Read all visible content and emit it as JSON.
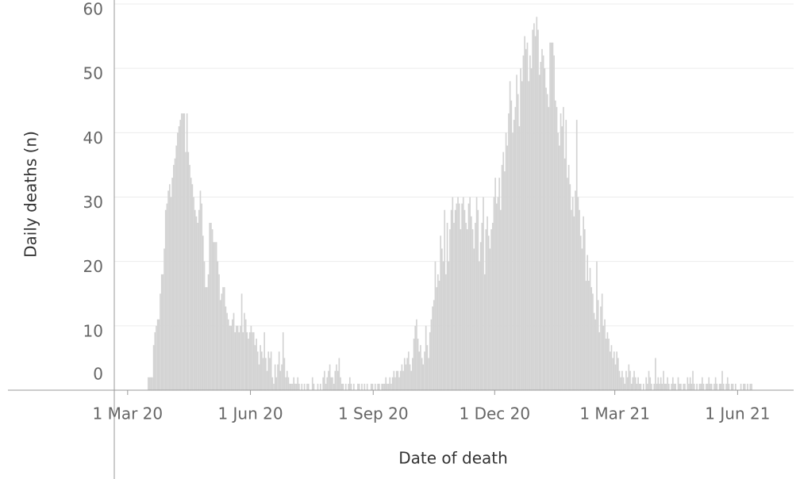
{
  "chart_data": {
    "type": "bar",
    "x_label": "Date of death",
    "y_label": "Daily deaths (n)",
    "color": "#d3d3d3",
    "grid": true,
    "xlim": [
      "2020-02-20",
      "2021-07-13"
    ],
    "xticks": [
      {
        "value": "2020-03-01",
        "label": "1 Mar 20"
      },
      {
        "value": "2020-06-01",
        "label": "1 Jun 20"
      },
      {
        "value": "2020-09-01",
        "label": "1 Sep 20"
      },
      {
        "value": "2020-12-01",
        "label": "1 Dec 20"
      },
      {
        "value": "2021-03-01",
        "label": "1 Mar 21"
      },
      {
        "value": "2021-06-01",
        "label": "1 Jun 21"
      }
    ],
    "ylim": [
      0,
      60
    ],
    "yticks": [
      0,
      10,
      20,
      30,
      40,
      50,
      60
    ],
    "x": [
      "2020-03-16",
      "2020-03-17",
      "2020-03-18",
      "2020-03-19",
      "2020-03-20",
      "2020-03-21",
      "2020-03-22",
      "2020-03-23",
      "2020-03-24",
      "2020-03-25",
      "2020-03-26",
      "2020-03-27",
      "2020-03-28",
      "2020-03-29",
      "2020-03-30",
      "2020-03-31",
      "2020-04-01",
      "2020-04-02",
      "2020-04-03",
      "2020-04-04",
      "2020-04-05",
      "2020-04-06",
      "2020-04-07",
      "2020-04-08",
      "2020-04-09",
      "2020-04-10",
      "2020-04-11",
      "2020-04-12",
      "2020-04-13",
      "2020-04-14",
      "2020-04-15",
      "2020-04-16",
      "2020-04-17",
      "2020-04-18",
      "2020-04-19",
      "2020-04-20",
      "2020-04-21",
      "2020-04-22",
      "2020-04-23",
      "2020-04-24",
      "2020-04-25",
      "2020-04-26",
      "2020-04-27",
      "2020-04-28",
      "2020-04-29",
      "2020-04-30",
      "2020-05-01",
      "2020-05-02",
      "2020-05-03",
      "2020-05-04",
      "2020-05-05",
      "2020-05-06",
      "2020-05-07",
      "2020-05-08",
      "2020-05-09",
      "2020-05-10",
      "2020-05-11",
      "2020-05-12",
      "2020-05-13",
      "2020-05-14",
      "2020-05-15",
      "2020-05-16",
      "2020-05-17",
      "2020-05-18",
      "2020-05-19",
      "2020-05-20",
      "2020-05-21",
      "2020-05-22",
      "2020-05-23",
      "2020-05-24",
      "2020-05-25",
      "2020-05-26",
      "2020-05-27",
      "2020-05-28",
      "2020-05-29",
      "2020-05-30",
      "2020-05-31",
      "2020-06-01",
      "2020-06-02",
      "2020-06-03",
      "2020-06-04",
      "2020-06-05",
      "2020-06-06",
      "2020-06-07",
      "2020-06-08",
      "2020-06-09",
      "2020-06-10",
      "2020-06-11",
      "2020-06-12",
      "2020-06-13",
      "2020-06-14",
      "2020-06-15",
      "2020-06-16",
      "2020-06-17",
      "2020-06-18",
      "2020-06-19",
      "2020-06-20",
      "2020-06-21",
      "2020-06-22",
      "2020-06-23",
      "2020-06-24",
      "2020-06-25",
      "2020-06-26",
      "2020-06-27",
      "2020-06-28",
      "2020-06-29",
      "2020-06-30",
      "2020-07-01",
      "2020-07-02",
      "2020-07-03",
      "2020-07-04",
      "2020-07-05",
      "2020-07-06",
      "2020-07-07",
      "2020-07-08",
      "2020-07-09",
      "2020-07-10",
      "2020-07-11",
      "2020-07-12",
      "2020-07-13",
      "2020-07-14",
      "2020-07-15",
      "2020-07-16",
      "2020-07-17",
      "2020-07-18",
      "2020-07-19",
      "2020-07-20",
      "2020-07-21",
      "2020-07-22",
      "2020-07-23",
      "2020-07-24",
      "2020-07-25",
      "2020-07-26",
      "2020-07-27",
      "2020-07-28",
      "2020-07-29",
      "2020-07-30",
      "2020-07-31",
      "2020-08-01",
      "2020-08-02",
      "2020-08-03",
      "2020-08-04",
      "2020-08-05",
      "2020-08-06",
      "2020-08-07",
      "2020-08-08",
      "2020-08-09",
      "2020-08-10",
      "2020-08-11",
      "2020-08-12",
      "2020-08-13",
      "2020-08-14",
      "2020-08-15",
      "2020-08-16",
      "2020-08-17",
      "2020-08-18",
      "2020-08-19",
      "2020-08-20",
      "2020-08-21",
      "2020-08-22",
      "2020-08-23",
      "2020-08-24",
      "2020-08-25",
      "2020-08-26",
      "2020-08-27",
      "2020-08-28",
      "2020-08-29",
      "2020-08-30",
      "2020-08-31",
      "2020-09-01",
      "2020-09-02",
      "2020-09-03",
      "2020-09-04",
      "2020-09-05",
      "2020-09-06",
      "2020-09-07",
      "2020-09-08",
      "2020-09-09",
      "2020-09-10",
      "2020-09-11",
      "2020-09-12",
      "2020-09-13",
      "2020-09-14",
      "2020-09-15",
      "2020-09-16",
      "2020-09-17",
      "2020-09-18",
      "2020-09-19",
      "2020-09-20",
      "2020-09-21",
      "2020-09-22",
      "2020-09-23",
      "2020-09-24",
      "2020-09-25",
      "2020-09-26",
      "2020-09-27",
      "2020-09-28",
      "2020-09-29",
      "2020-09-30",
      "2020-10-01",
      "2020-10-02",
      "2020-10-03",
      "2020-10-04",
      "2020-10-05",
      "2020-10-06",
      "2020-10-07",
      "2020-10-08",
      "2020-10-09",
      "2020-10-10",
      "2020-10-11",
      "2020-10-12",
      "2020-10-13",
      "2020-10-14",
      "2020-10-15",
      "2020-10-16",
      "2020-10-17",
      "2020-10-18",
      "2020-10-19",
      "2020-10-20",
      "2020-10-21",
      "2020-10-22",
      "2020-10-23",
      "2020-10-24",
      "2020-10-25",
      "2020-10-26",
      "2020-10-27",
      "2020-10-28",
      "2020-10-29",
      "2020-10-30",
      "2020-10-31",
      "2020-11-01",
      "2020-11-02",
      "2020-11-03",
      "2020-11-04",
      "2020-11-05",
      "2020-11-06",
      "2020-11-07",
      "2020-11-08",
      "2020-11-09",
      "2020-11-10",
      "2020-11-11",
      "2020-11-12",
      "2020-11-13",
      "2020-11-14",
      "2020-11-15",
      "2020-11-16",
      "2020-11-17",
      "2020-11-18",
      "2020-11-19",
      "2020-11-20",
      "2020-11-21",
      "2020-11-22",
      "2020-11-23",
      "2020-11-24",
      "2020-11-25",
      "2020-11-26",
      "2020-11-27",
      "2020-11-28",
      "2020-11-29",
      "2020-11-30",
      "2020-12-01",
      "2020-12-02",
      "2020-12-03",
      "2020-12-04",
      "2020-12-05",
      "2020-12-06",
      "2020-12-07",
      "2020-12-08",
      "2020-12-09",
      "2020-12-10",
      "2020-12-11",
      "2020-12-12",
      "2020-12-13",
      "2020-12-14",
      "2020-12-15",
      "2020-12-16",
      "2020-12-17",
      "2020-12-18",
      "2020-12-19",
      "2020-12-20",
      "2020-12-21",
      "2020-12-22",
      "2020-12-23",
      "2020-12-24",
      "2020-12-25",
      "2020-12-26",
      "2020-12-27",
      "2020-12-28",
      "2020-12-29",
      "2020-12-30",
      "2020-12-31",
      "2021-01-01",
      "2021-01-02",
      "2021-01-03",
      "2021-01-04",
      "2021-01-05",
      "2021-01-06",
      "2021-01-07",
      "2021-01-08",
      "2021-01-09",
      "2021-01-10",
      "2021-01-11",
      "2021-01-12",
      "2021-01-13",
      "2021-01-14",
      "2021-01-15",
      "2021-01-16",
      "2021-01-17",
      "2021-01-18",
      "2021-01-19",
      "2021-01-20",
      "2021-01-21",
      "2021-01-22",
      "2021-01-23",
      "2021-01-24",
      "2021-01-25",
      "2021-01-26",
      "2021-01-27",
      "2021-01-28",
      "2021-01-29",
      "2021-01-30",
      "2021-01-31",
      "2021-02-01",
      "2021-02-02",
      "2021-02-03",
      "2021-02-04",
      "2021-02-05",
      "2021-02-06",
      "2021-02-07",
      "2021-02-08",
      "2021-02-09",
      "2021-02-10",
      "2021-02-11",
      "2021-02-12",
      "2021-02-13",
      "2021-02-14",
      "2021-02-15",
      "2021-02-16",
      "2021-02-17",
      "2021-02-18",
      "2021-02-19",
      "2021-02-20",
      "2021-02-21",
      "2021-02-22",
      "2021-02-23",
      "2021-02-24",
      "2021-02-25",
      "2021-02-26",
      "2021-02-27",
      "2021-02-28",
      "2021-03-01",
      "2021-03-02",
      "2021-03-03",
      "2021-03-04",
      "2021-03-05",
      "2021-03-06",
      "2021-03-07",
      "2021-03-08",
      "2021-03-09",
      "2021-03-10",
      "2021-03-11",
      "2021-03-12",
      "2021-03-13",
      "2021-03-14",
      "2021-03-15",
      "2021-03-16",
      "2021-03-17",
      "2021-03-18",
      "2021-03-19",
      "2021-03-20",
      "2021-03-21",
      "2021-03-22",
      "2021-03-23",
      "2021-03-24",
      "2021-03-25",
      "2021-03-26",
      "2021-03-27",
      "2021-03-28",
      "2021-03-29",
      "2021-03-30",
      "2021-03-31",
      "2021-04-01",
      "2021-04-02",
      "2021-04-03",
      "2021-04-04",
      "2021-04-05",
      "2021-04-06",
      "2021-04-07",
      "2021-04-08",
      "2021-04-09",
      "2021-04-10",
      "2021-04-11",
      "2021-04-12",
      "2021-04-13",
      "2021-04-14",
      "2021-04-15",
      "2021-04-16",
      "2021-04-17",
      "2021-04-18",
      "2021-04-19",
      "2021-04-20",
      "2021-04-21",
      "2021-04-22",
      "2021-04-23",
      "2021-04-24",
      "2021-04-25",
      "2021-04-26",
      "2021-04-27",
      "2021-04-28",
      "2021-04-29",
      "2021-04-30",
      "2021-05-01",
      "2021-05-02",
      "2021-05-03",
      "2021-05-04",
      "2021-05-05",
      "2021-05-06",
      "2021-05-07",
      "2021-05-08",
      "2021-05-09",
      "2021-05-10",
      "2021-05-11",
      "2021-05-12",
      "2021-05-13",
      "2021-05-14",
      "2021-05-15",
      "2021-05-16",
      "2021-05-17",
      "2021-05-18",
      "2021-05-19",
      "2021-05-20",
      "2021-05-21",
      "2021-05-22",
      "2021-05-23",
      "2021-05-24",
      "2021-05-25",
      "2021-05-26",
      "2021-05-27",
      "2021-05-28",
      "2021-05-29",
      "2021-05-30",
      "2021-05-31",
      "2021-06-01",
      "2021-06-02",
      "2021-06-03",
      "2021-06-04",
      "2021-06-05",
      "2021-06-06",
      "2021-06-07",
      "2021-06-08",
      "2021-06-09",
      "2021-06-10",
      "2021-06-11"
    ],
    "values": [
      2,
      2,
      2,
      2,
      7,
      9,
      10,
      11,
      11,
      15,
      18,
      18,
      22,
      28,
      29,
      31,
      32,
      30,
      33,
      35,
      36,
      38,
      40,
      41,
      42,
      43,
      43,
      43,
      37,
      43,
      37,
      35,
      33,
      32,
      30,
      28,
      27,
      26,
      28,
      31,
      29,
      24,
      20,
      16,
      16,
      18,
      26,
      26,
      25,
      23,
      23,
      23,
      20,
      18,
      14,
      15,
      16,
      16,
      13,
      12,
      11,
      10,
      10,
      11,
      12,
      9,
      10,
      10,
      9,
      10,
      15,
      9,
      12,
      11,
      9,
      8,
      9,
      10,
      9,
      9,
      7,
      8,
      6,
      4,
      7,
      6,
      5,
      9,
      5,
      3,
      6,
      5,
      6,
      2,
      1,
      4,
      2,
      4,
      6,
      3,
      4,
      9,
      5,
      2,
      3,
      2,
      1,
      1,
      1,
      2,
      1,
      1,
      2,
      1,
      0,
      1,
      0,
      1,
      0,
      1,
      1,
      0,
      0,
      2,
      1,
      0,
      0,
      1,
      0,
      1,
      0,
      2,
      3,
      1,
      2,
      3,
      4,
      2,
      2,
      1,
      3,
      4,
      3,
      5,
      2,
      1,
      1,
      0,
      1,
      0,
      1,
      2,
      1,
      0,
      1,
      0,
      0,
      1,
      1,
      0,
      1,
      0,
      1,
      0,
      1,
      0,
      0,
      1,
      1,
      0,
      1,
      0,
      1,
      1,
      0,
      1,
      1,
      1,
      2,
      1,
      1,
      2,
      1,
      2,
      3,
      2,
      3,
      3,
      2,
      3,
      4,
      3,
      5,
      4,
      5,
      6,
      4,
      3,
      5,
      8,
      10,
      11,
      8,
      6,
      7,
      5,
      4,
      6,
      10,
      7,
      5,
      9,
      11,
      13,
      14,
      20,
      16,
      18,
      17,
      24,
      22,
      20,
      28,
      18,
      26,
      20,
      25,
      28,
      30,
      26,
      28,
      29,
      30,
      29,
      25,
      29,
      30,
      28,
      26,
      25,
      29,
      30,
      27,
      25,
      22,
      26,
      30,
      28,
      20,
      23,
      26,
      30,
      18,
      25,
      27,
      24,
      22,
      25,
      26,
      30,
      33,
      29,
      30,
      33,
      28,
      35,
      37,
      34,
      40,
      38,
      43,
      48,
      45,
      40,
      42,
      44,
      49,
      46,
      41,
      50,
      48,
      52,
      55,
      53,
      54,
      48,
      52,
      50,
      56,
      57,
      55,
      58,
      56,
      49,
      51,
      53,
      52,
      50,
      47,
      46,
      44,
      54,
      54,
      54,
      52,
      45,
      44,
      40,
      38,
      43,
      41,
      44,
      36,
      42,
      33,
      35,
      32,
      28,
      30,
      27,
      31,
      42,
      30,
      28,
      24,
      22,
      27,
      25,
      17,
      21,
      17,
      19,
      16,
      15,
      12,
      11,
      20,
      14,
      9,
      13,
      15,
      10,
      11,
      8,
      9,
      8,
      6,
      7,
      5,
      6,
      4,
      6,
      5,
      3,
      2,
      3,
      2,
      1,
      3,
      2,
      4,
      3,
      1,
      2,
      3,
      2,
      1,
      2,
      1,
      1,
      0,
      1,
      0,
      2,
      1,
      3,
      2,
      1,
      0,
      1,
      5,
      1,
      2,
      1,
      2,
      1,
      3,
      1,
      1,
      2,
      1,
      0,
      1,
      2,
      1,
      1,
      0,
      2,
      1,
      1,
      0,
      1,
      1,
      0,
      2,
      1,
      2,
      1,
      3,
      1,
      0,
      1,
      0,
      1,
      1,
      2,
      1,
      0,
      1,
      1,
      2,
      1,
      1,
      0,
      1,
      2,
      1,
      0,
      1,
      1,
      3,
      1,
      0,
      1,
      2,
      1,
      0,
      1,
      1,
      0,
      1,
      0,
      0,
      0,
      1,
      0,
      1,
      1,
      0,
      1,
      0,
      1,
      1
    ]
  }
}
